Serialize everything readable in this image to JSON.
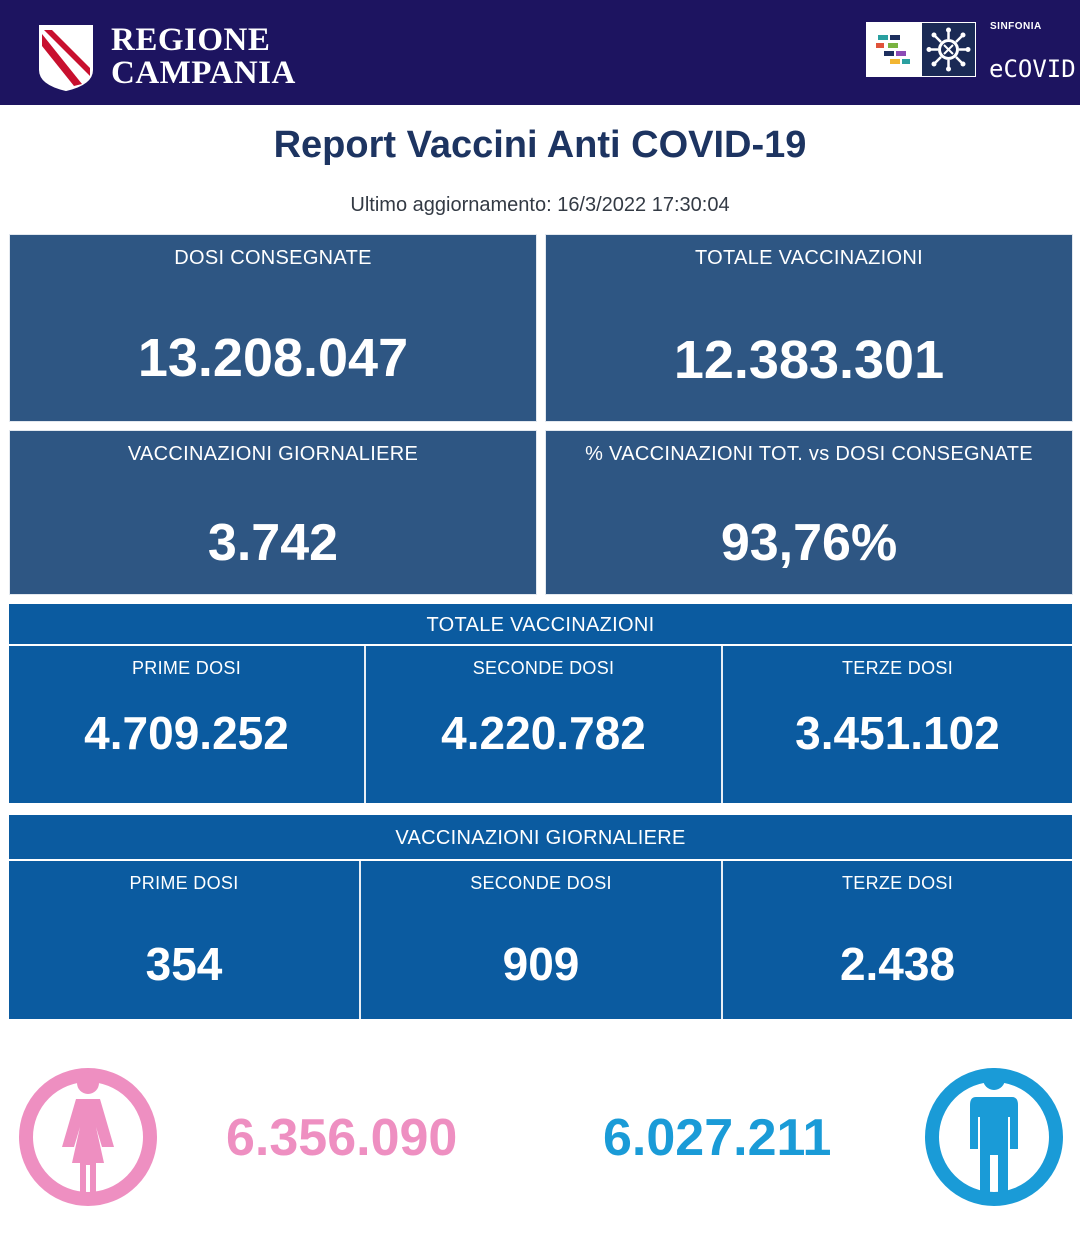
{
  "header": {
    "brand_line1": "REGIONE",
    "brand_line2": "CAMPANIA",
    "partner_small": "SINFONIA",
    "partner_name": "eCOVID",
    "bg_color": "#1d1460"
  },
  "title": "Report Vaccini Anti COVID-19",
  "updated": "Ultimo aggiornamento: 16/3/2022  17:30:04",
  "summary": {
    "dosi_consegnate": {
      "label": "DOSI  CONSEGNATE",
      "value": "13.208.047"
    },
    "totale_vaccinazioni": {
      "label": "TOTALE VACCINAZIONI",
      "value": "12.383.301"
    },
    "vaccinazioni_giornaliere": {
      "label": "VACCINAZIONI GIORNALIERE",
      "value": "3.742"
    },
    "percentuale": {
      "label": "% VACCINAZIONI TOT. vs DOSI CONSEGNATE",
      "value": "93,76%"
    }
  },
  "totale_section": {
    "label": "TOTALE VACCINAZIONI",
    "prime": {
      "label": "PRIME DOSI",
      "value": "4.709.252"
    },
    "seconde": {
      "label": "SECONDE DOSI",
      "value": "4.220.782"
    },
    "terze": {
      "label": "TERZE DOSI",
      "value": "3.451.102"
    }
  },
  "giornaliere_section": {
    "label": "VACCINAZIONI GIORNALIERE",
    "prime": {
      "label": "PRIME DOSI",
      "value": "354"
    },
    "seconde": {
      "label": "SECONDE DOSI",
      "value": "909"
    },
    "terze": {
      "label": "TERZE DOSI",
      "value": "2.438"
    }
  },
  "gender": {
    "female": {
      "icon": "female-person-icon",
      "value": "6.356.090",
      "color": "#ee8fc1"
    },
    "male": {
      "icon": "male-person-icon",
      "value": "6.027.211",
      "color": "#1a9bd7"
    }
  },
  "colors": {
    "panel": "#2e5683",
    "band": "#0b5ba0",
    "title": "#1d3461"
  }
}
